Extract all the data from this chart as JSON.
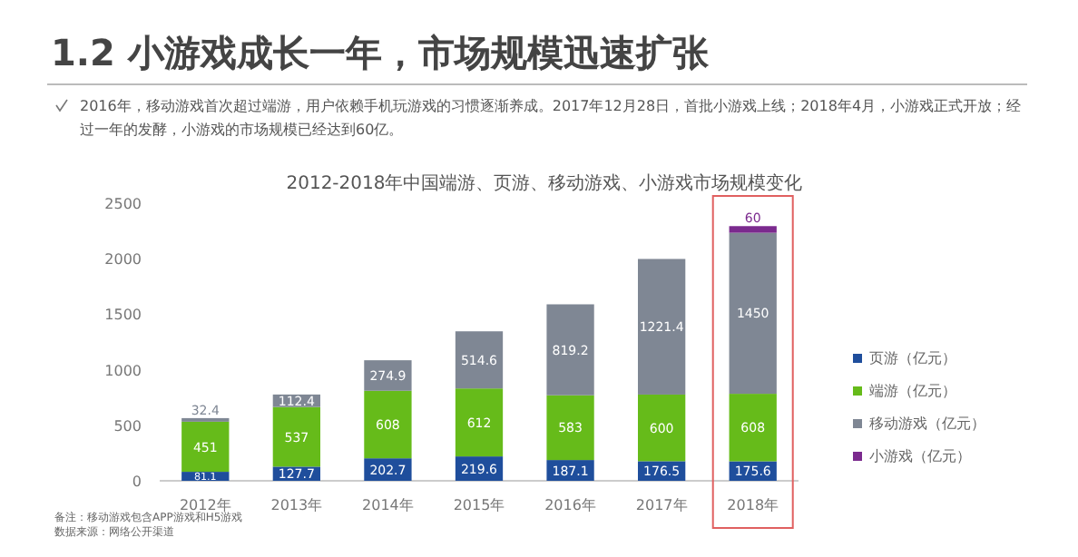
{
  "chart_data": {
    "type": "bar",
    "stacked": true,
    "title": "1.2 小游戏成长一年，市场规模迅速扩张",
    "subtitle": "2016年，移动游戏首次超过端游，用户依赖手机玩游戏的习惯逐渐养成。2017年12月28日，首批小游戏上线；2018年4月，小游戏正式开放；经过一年的发酵，小游戏的市场规模已经达到60亿。",
    "annotations": [
      "2012-2018年中国端游、页游、移动游戏、小游戏市场规模变化",
      "备注：移动游戏包含APP游戏和H5游戏",
      "数据来源：网络公开渠道"
    ],
    "categories": [
      "2012年",
      "2013年",
      "2014年",
      "2015年",
      "2016年",
      "2017年",
      "2018年"
    ],
    "ylim": [
      0,
      2500
    ],
    "yticks": [
      0,
      500,
      1000,
      1500,
      2000,
      2500
    ],
    "data_labels": true,
    "legend": "right",
    "series": [
      {
        "name": "页游（亿元）",
        "color": "#1f4e9c",
        "values": [
          81.1,
          127.7,
          202.7,
          219.6,
          187.1,
          176.5,
          175.6
        ]
      },
      {
        "name": "端游（亿元）",
        "color": "#66bb1a",
        "values": [
          451,
          537,
          608,
          612,
          583,
          600,
          608
        ]
      },
      {
        "name": "移动游戏（亿元）",
        "color": "#7f8794",
        "values": [
          32.4,
          112.4,
          274.9,
          514.6,
          819.2,
          1221.4,
          1450
        ]
      },
      {
        "name": "小游戏（亿元）",
        "color": "#7b2a8e",
        "values": [
          null,
          null,
          null,
          null,
          null,
          null,
          60
        ]
      }
    ]
  }
}
